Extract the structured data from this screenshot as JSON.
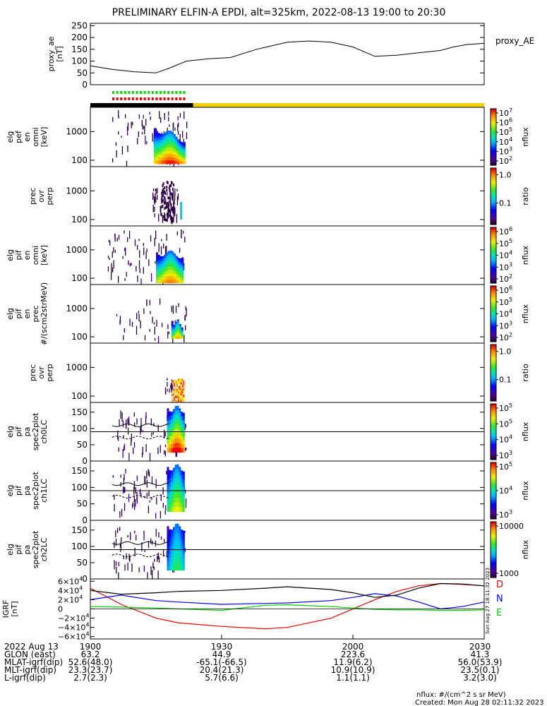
{
  "title": "PRELIMINARY ELFIN-A EPDI, alt=325km, 2022-08-13 19:00 to 20:30",
  "colors": {
    "ae_line": "#000000",
    "bar_black": "#000000",
    "bar_yellow": "#f0d000",
    "mark_green": "#00dd00",
    "mark_red": "#ee0000",
    "bx": "#ee0000",
    "by": "#00cc00",
    "bz": "#0000ee",
    "btot": "#000000"
  },
  "created": "Created: Mon Aug 28 02:11:32 2023",
  "nflux_units": "nflux: #/(cm^2 s sr MeV)",
  "vertical_stamp": "Sun Aug 27 18:11:32 2023",
  "chart_data": [
    {
      "id": "proxy_ae",
      "type": "line",
      "ylabel": [
        "proxy_ae",
        "[nT]"
      ],
      "legend": "proxy_AE",
      "ylim": [
        0,
        260
      ],
      "yticks": [
        0,
        50,
        100,
        150,
        200,
        250
      ],
      "x_minutes": [
        0,
        5,
        10,
        15,
        18,
        22,
        27,
        32,
        38,
        45,
        50,
        55,
        60,
        65,
        70,
        75,
        80,
        83,
        86,
        90
      ],
      "values": [
        80,
        65,
        55,
        50,
        70,
        100,
        110,
        115,
        150,
        180,
        185,
        180,
        160,
        120,
        125,
        135,
        145,
        160,
        170,
        175
      ]
    },
    {
      "id": "bar",
      "type": "bar",
      "segments": [
        {
          "from": 0,
          "to": 23.5,
          "color": "black"
        },
        {
          "from": 23.5,
          "to": 90,
          "color": "yellow"
        }
      ],
      "marks": [
        {
          "from": 5,
          "to": 21.5
        }
      ]
    },
    {
      "id": "elg_perp",
      "type": "heatmap",
      "ylabel": [
        "elg",
        "pef",
        "en",
        "omni",
        "[keV]"
      ],
      "yticks": [
        100,
        1000
      ],
      "ylim": [
        60,
        7000
      ],
      "cbar_kind": "log",
      "cbar_ticks": [
        "10^7",
        "10^6",
        "10^5",
        "10^4",
        "10^3",
        "10^2"
      ],
      "cbar_label": "nflux"
    },
    {
      "id": "prec_ovr_perp_e",
      "type": "heatmap",
      "ylabel": [
        "prec",
        "ovr",
        "perp"
      ],
      "yticks": [
        100,
        1000
      ],
      "ylim": [
        60,
        7000
      ],
      "cbar_kind": "ratio",
      "cbar_ticks": [
        "1.0",
        "0.1"
      ],
      "cbar_label": "ratio"
    },
    {
      "id": "elg_pif_omni",
      "type": "heatmap",
      "ylabel": [
        "elg",
        "pif",
        "en",
        "omni",
        "[keV]"
      ],
      "yticks": [
        100,
        1000
      ],
      "ylim": [
        60,
        7000
      ],
      "cbar_kind": "log",
      "cbar_ticks": [
        "10^6",
        "10^5",
        "10^4",
        "10^3",
        "10^2"
      ],
      "cbar_label": "nflux"
    },
    {
      "id": "elg_pif_prec",
      "type": "heatmap",
      "ylabel": [
        "elg",
        "pif",
        "en",
        "prec",
        "#/(scm2strMeV)"
      ],
      "yticks": [
        100,
        1000
      ],
      "ylim": [
        60,
        7000
      ],
      "cbar_kind": "log",
      "cbar_ticks": [
        "10^6",
        "10^5",
        "10^4",
        "10^3",
        "10^2"
      ],
      "cbar_label": "nflux"
    },
    {
      "id": "prec_ovr_perp_i",
      "type": "heatmap",
      "ylabel": [
        "prec",
        "ovr",
        "perp"
      ],
      "yticks": [
        100,
        1000
      ],
      "ylim": [
        60,
        7000
      ],
      "cbar_kind": "ratio",
      "cbar_ticks": [
        "1.0",
        "0.1"
      ],
      "cbar_label": "ratio"
    },
    {
      "id": "pa_ch0",
      "type": "heatmap",
      "ylabel": [
        "elg",
        "pif",
        "pa",
        "spec2plot",
        "ch0LC"
      ],
      "yticks": [
        0,
        50,
        100,
        150
      ],
      "ylim": [
        0,
        180
      ],
      "cbar_kind": "log",
      "cbar_ticks": [
        "10^5",
        "10^5",
        "10^4",
        "10^3"
      ],
      "cbar_label": "nflux"
    },
    {
      "id": "pa_ch1",
      "type": "heatmap",
      "ylabel": [
        "elg",
        "pif",
        "pa",
        "spec2plot",
        "ch1LC"
      ],
      "yticks": [
        0,
        50,
        100,
        150
      ],
      "ylim": [
        0,
        180
      ],
      "cbar_kind": "log",
      "cbar_ticks": [
        "10^5",
        "10^4",
        "10^3"
      ],
      "cbar_label": "nflux"
    },
    {
      "id": "pa_ch2",
      "type": "heatmap",
      "ylabel": [
        "elg",
        "pif",
        "pa",
        "spec2plot",
        "ch2LC"
      ],
      "yticks": [
        0,
        50,
        100,
        150
      ],
      "ylim": [
        0,
        180
      ],
      "cbar_kind": "lin",
      "cbar_ticks": [
        "10000",
        "1000"
      ],
      "cbar_label": "nflux"
    },
    {
      "id": "igrf",
      "type": "line",
      "ylabel": [
        "IGRF",
        "[nT]"
      ],
      "ylim": [
        -65000,
        65000
      ],
      "yticks": [
        "6×10^4",
        "4×10^4",
        "2×10^4",
        "0",
        "−2×10^4",
        "−4×10^4",
        "−6×10^4"
      ],
      "ytick_values": [
        60000,
        40000,
        20000,
        0,
        -20000,
        -40000,
        -60000
      ],
      "legend": [
        "D",
        "N",
        "E"
      ],
      "x_minutes": [
        0,
        7,
        15,
        20,
        30,
        40,
        45,
        55,
        60,
        65,
        70,
        75,
        80,
        85,
        90
      ],
      "series": [
        {
          "color": "red",
          "values": [
            45000,
            10000,
            -20000,
            -30000,
            -38000,
            -43000,
            -40000,
            -20000,
            0,
            20000,
            38000,
            50000,
            55000,
            53000,
            50000
          ]
        },
        {
          "color": "green",
          "values": [
            5000,
            4000,
            2000,
            0,
            -3000,
            8000,
            9000,
            5000,
            2000,
            -1000,
            -2000,
            -2000,
            -3000,
            -3000,
            -2000
          ]
        },
        {
          "color": "blue",
          "values": [
            20000,
            30000,
            18000,
            15000,
            10000,
            12000,
            13000,
            18000,
            25000,
            33000,
            28000,
            15000,
            0,
            5000,
            15000
          ]
        },
        {
          "color": "black",
          "values": [
            40000,
            32000,
            35000,
            38000,
            40000,
            45000,
            48000,
            42000,
            35000,
            25000,
            30000,
            45000,
            55000,
            54000,
            50000
          ]
        }
      ]
    }
  ],
  "xaxis": {
    "rows": [
      {
        "label": "2022 Aug 13",
        "values": [
          "1900",
          "1930",
          "2000",
          "2030"
        ]
      },
      {
        "label": "GLON (east)",
        "values": [
          "63.2",
          "44.9",
          "223.6",
          "41.3"
        ]
      },
      {
        "label": "MLAT-igrf(dip)",
        "values": [
          "52.6(48.0)",
          "-65.1(-66.5)",
          "11.9(6.2)",
          "56.0(53.9)"
        ]
      },
      {
        "label": "MLT-igrf(dip)",
        "values": [
          "23.3(23.7)",
          "20.4(21.3)",
          "10.9(10.9)",
          "23.5(0.1)"
        ]
      },
      {
        "label": "L-igrf(dip)",
        "values": [
          "2.7(2.3)",
          "5.7(6.6)",
          "1.1(1.1)",
          "3.2(3.0)"
        ]
      }
    ]
  }
}
